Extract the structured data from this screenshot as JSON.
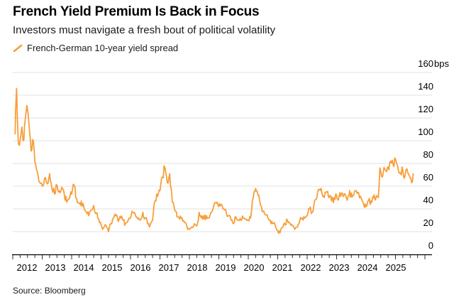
{
  "header": {
    "title": "French Yield Premium Is Back in Focus",
    "subtitle": "Investors must navigate a fresh bout of political volatility",
    "legend": {
      "label": "French-German 10-year yield spread",
      "marker": "diagonal-line-icon"
    }
  },
  "footer": {
    "source": "Source: Bloomberg"
  },
  "colors": {
    "line": "#F89E3A",
    "grid": "#E0E0E0",
    "axis": "#000000",
    "tick": "#333333",
    "text": "#000000"
  },
  "chart_data": {
    "type": "line",
    "title": "French Yield Premium Is Back in Focus",
    "subtitle": "Investors must navigate a fresh bout of political volatility",
    "ylabel": "bps",
    "xlabel": "",
    "grid": true,
    "legend_position": "top-left",
    "xlim": [
      2012,
      2026.2
    ],
    "ylim": [
      0,
      160
    ],
    "y_unit_suffix": "bps",
    "y_tick_values": [
      0,
      20,
      40,
      60,
      80,
      100,
      120,
      140,
      160
    ],
    "x_tick_labels": [
      "2012",
      "2013",
      "2014",
      "2015",
      "2016",
      "2017",
      "2018",
      "2019",
      "2020",
      "2021",
      "2022",
      "2023",
      "2024",
      "2025"
    ],
    "series": [
      {
        "name": "French-German 10-year yield spread",
        "color": "#F89E3A",
        "points": [
          [
            2012.08,
            106
          ],
          [
            2012.1,
            128
          ],
          [
            2012.13,
            146
          ],
          [
            2012.16,
            118
          ],
          [
            2012.19,
            97
          ],
          [
            2012.23,
            96
          ],
          [
            2012.27,
            104
          ],
          [
            2012.31,
            112
          ],
          [
            2012.35,
            100
          ],
          [
            2012.4,
            113
          ],
          [
            2012.44,
            123
          ],
          [
            2012.48,
            131
          ],
          [
            2012.52,
            124
          ],
          [
            2012.56,
            112
          ],
          [
            2012.6,
            100
          ],
          [
            2012.65,
            92
          ],
          [
            2012.7,
            99
          ],
          [
            2012.75,
            82
          ],
          [
            2012.83,
            73
          ],
          [
            2012.92,
            63
          ],
          [
            2013.0,
            60
          ],
          [
            2013.08,
            67
          ],
          [
            2013.17,
            62
          ],
          [
            2013.25,
            71
          ],
          [
            2013.33,
            58
          ],
          [
            2013.42,
            53
          ],
          [
            2013.5,
            61
          ],
          [
            2013.58,
            56
          ],
          [
            2013.67,
            59
          ],
          [
            2013.75,
            53
          ],
          [
            2013.83,
            46
          ],
          [
            2013.92,
            49
          ],
          [
            2014.0,
            53
          ],
          [
            2014.08,
            61
          ],
          [
            2014.17,
            49
          ],
          [
            2014.25,
            45
          ],
          [
            2014.33,
            47
          ],
          [
            2014.42,
            41
          ],
          [
            2014.5,
            37
          ],
          [
            2014.58,
            34
          ],
          [
            2014.67,
            39
          ],
          [
            2014.75,
            43
          ],
          [
            2014.83,
            36
          ],
          [
            2014.92,
            31
          ],
          [
            2015.0,
            26
          ],
          [
            2015.08,
            23
          ],
          [
            2015.17,
            25
          ],
          [
            2015.25,
            20
          ],
          [
            2015.33,
            27
          ],
          [
            2015.42,
            32
          ],
          [
            2015.5,
            34
          ],
          [
            2015.58,
            29
          ],
          [
            2015.67,
            32
          ],
          [
            2015.75,
            30
          ],
          [
            2015.83,
            27
          ],
          [
            2015.92,
            30
          ],
          [
            2016.0,
            32
          ],
          [
            2016.08,
            37
          ],
          [
            2016.17,
            34
          ],
          [
            2016.25,
            31
          ],
          [
            2016.33,
            30
          ],
          [
            2016.42,
            37
          ],
          [
            2016.5,
            32
          ],
          [
            2016.58,
            27
          ],
          [
            2016.67,
            26
          ],
          [
            2016.75,
            30
          ],
          [
            2016.83,
            47
          ],
          [
            2016.92,
            51
          ],
          [
            2017.0,
            56
          ],
          [
            2017.08,
            68
          ],
          [
            2017.17,
            76
          ],
          [
            2017.25,
            63
          ],
          [
            2017.33,
            71
          ],
          [
            2017.42,
            46
          ],
          [
            2017.5,
            39
          ],
          [
            2017.58,
            33
          ],
          [
            2017.67,
            31
          ],
          [
            2017.75,
            32
          ],
          [
            2017.83,
            28
          ],
          [
            2017.92,
            24
          ],
          [
            2018.0,
            22
          ],
          [
            2018.08,
            24
          ],
          [
            2018.17,
            27
          ],
          [
            2018.25,
            25
          ],
          [
            2018.33,
            37
          ],
          [
            2018.42,
            34
          ],
          [
            2018.5,
            31
          ],
          [
            2018.58,
            34
          ],
          [
            2018.67,
            32
          ],
          [
            2018.75,
            37
          ],
          [
            2018.83,
            43
          ],
          [
            2018.92,
            45
          ],
          [
            2019.0,
            42
          ],
          [
            2019.08,
            44
          ],
          [
            2019.17,
            40
          ],
          [
            2019.25,
            37
          ],
          [
            2019.33,
            34
          ],
          [
            2019.42,
            30
          ],
          [
            2019.5,
            27
          ],
          [
            2019.58,
            33
          ],
          [
            2019.67,
            30
          ],
          [
            2019.75,
            30
          ],
          [
            2019.83,
            32
          ],
          [
            2019.92,
            31
          ],
          [
            2020.0,
            30
          ],
          [
            2020.08,
            32
          ],
          [
            2020.17,
            50
          ],
          [
            2020.25,
            58
          ],
          [
            2020.33,
            52
          ],
          [
            2020.42,
            43
          ],
          [
            2020.5,
            38
          ],
          [
            2020.58,
            35
          ],
          [
            2020.67,
            32
          ],
          [
            2020.75,
            30
          ],
          [
            2020.83,
            27
          ],
          [
            2020.92,
            25
          ],
          [
            2021.0,
            21
          ],
          [
            2021.08,
            19
          ],
          [
            2021.17,
            24
          ],
          [
            2021.25,
            26
          ],
          [
            2021.33,
            30
          ],
          [
            2021.42,
            27
          ],
          [
            2021.5,
            25
          ],
          [
            2021.58,
            22
          ],
          [
            2021.67,
            24
          ],
          [
            2021.75,
            30
          ],
          [
            2021.83,
            32
          ],
          [
            2021.92,
            32
          ],
          [
            2022.0,
            34
          ],
          [
            2022.08,
            40
          ],
          [
            2022.17,
            37
          ],
          [
            2022.25,
            47
          ],
          [
            2022.33,
            50
          ],
          [
            2022.42,
            57
          ],
          [
            2022.5,
            54
          ],
          [
            2022.58,
            50
          ],
          [
            2022.67,
            55
          ],
          [
            2022.75,
            50
          ],
          [
            2022.83,
            47
          ],
          [
            2022.92,
            50
          ],
          [
            2023.0,
            52
          ],
          [
            2023.08,
            50
          ],
          [
            2023.17,
            54
          ],
          [
            2023.25,
            52
          ],
          [
            2023.33,
            50
          ],
          [
            2023.42,
            52
          ],
          [
            2023.5,
            54
          ],
          [
            2023.58,
            52
          ],
          [
            2023.67,
            56
          ],
          [
            2023.75,
            54
          ],
          [
            2023.83,
            50
          ],
          [
            2023.92,
            44
          ],
          [
            2024.0,
            42
          ],
          [
            2024.08,
            47
          ],
          [
            2024.17,
            47
          ],
          [
            2024.25,
            50
          ],
          [
            2024.33,
            49
          ],
          [
            2024.42,
            50
          ],
          [
            2024.47,
            76
          ],
          [
            2024.5,
            73
          ],
          [
            2024.58,
            71
          ],
          [
            2024.67,
            74
          ],
          [
            2024.75,
            77
          ],
          [
            2024.83,
            82
          ],
          [
            2024.92,
            79
          ],
          [
            2025.0,
            84
          ],
          [
            2025.04,
            80
          ],
          [
            2025.08,
            77
          ],
          [
            2025.17,
            72
          ],
          [
            2025.25,
            74
          ],
          [
            2025.33,
            70
          ],
          [
            2025.42,
            72
          ],
          [
            2025.5,
            67
          ],
          [
            2025.55,
            63
          ],
          [
            2025.6,
            71
          ]
        ]
      }
    ]
  }
}
